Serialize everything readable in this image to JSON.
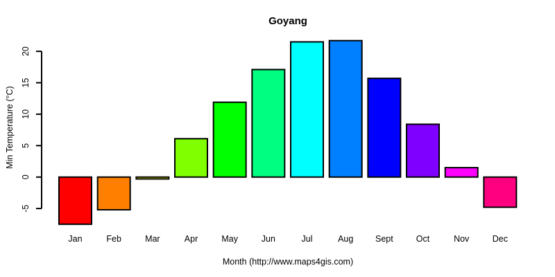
{
  "chart_data": {
    "type": "bar",
    "title": "Goyang",
    "xlabel": "Month (http://www.maps4gis.com)",
    "ylabel": "Min Temperature (°C)",
    "categories": [
      "Jan",
      "Feb",
      "Mar",
      "Apr",
      "May",
      "Jun",
      "Jul",
      "Aug",
      "Sept",
      "Oct",
      "Nov",
      "Dec"
    ],
    "values": [
      -7.5,
      -5.2,
      -0.3,
      6.1,
      11.9,
      17.1,
      21.5,
      21.7,
      15.7,
      8.4,
      1.5,
      -4.8
    ],
    "colors": [
      "#FF0000",
      "#FF8000",
      "#FFFF00",
      "#80FF00",
      "#00FF00",
      "#00FF80",
      "#00FFFF",
      "#0080FF",
      "#0000FF",
      "#8000FF",
      "#FF00FF",
      "#FF0080"
    ],
    "bar_border_color": "#000000",
    "yticks": [
      20,
      15,
      10,
      5,
      0,
      -5
    ],
    "ylim": [
      -7.9,
      21.9
    ],
    "grid": false,
    "legend": false,
    "background": "#FFFFFF"
  }
}
